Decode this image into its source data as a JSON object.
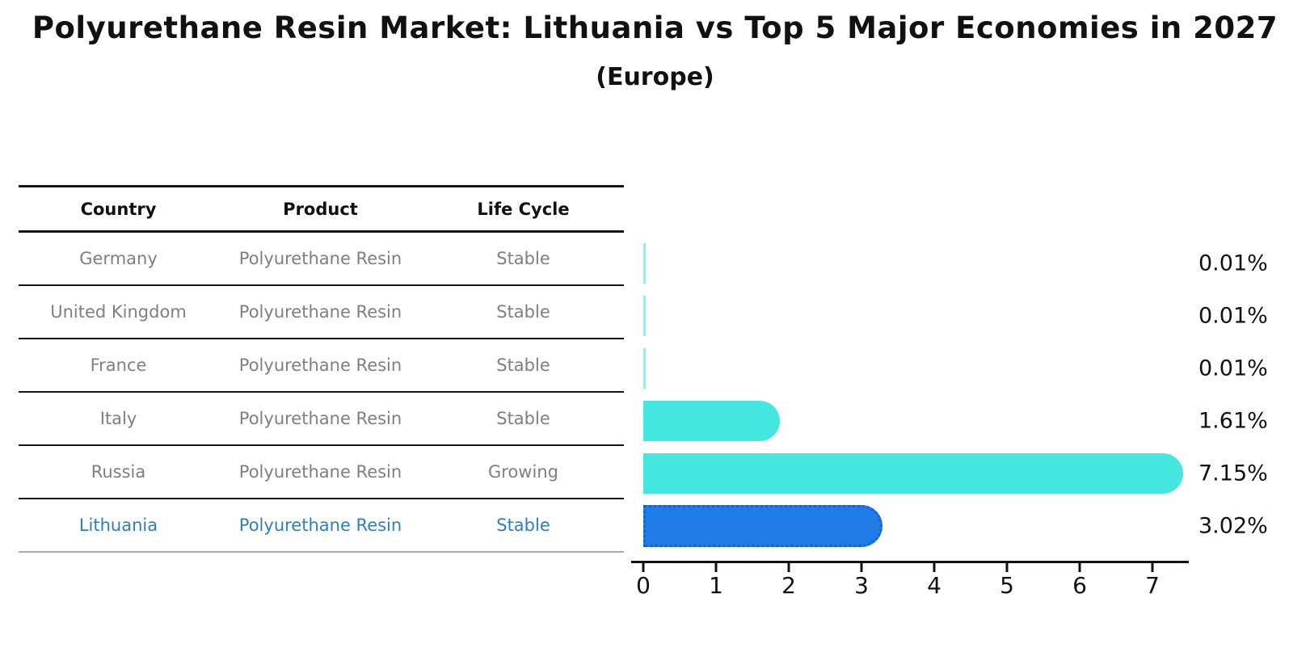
{
  "title": "Polyurethane Resin Market: Lithuania vs Top 5 Major Economies in 2027",
  "subtitle": "(Europe)",
  "table": {
    "headers": [
      "Country",
      "Product",
      "Life Cycle"
    ],
    "rows": [
      {
        "country": "Germany",
        "product": "Polyurethane Resin",
        "life_cycle": "Stable",
        "highlight": false
      },
      {
        "country": "United Kingdom",
        "product": "Polyurethane Resin",
        "life_cycle": "Stable",
        "highlight": false
      },
      {
        "country": "France",
        "product": "Polyurethane Resin",
        "life_cycle": "Stable",
        "highlight": false
      },
      {
        "country": "Italy",
        "product": "Polyurethane Resin",
        "life_cycle": "Stable",
        "highlight": false
      },
      {
        "country": "Russia",
        "product": "Polyurethane Resin",
        "life_cycle": "Growing",
        "highlight": false
      },
      {
        "country": "Lithuania",
        "product": "Polyurethane Resin",
        "life_cycle": "Stable",
        "highlight": true
      }
    ]
  },
  "chart_data": {
    "type": "bar",
    "orientation": "horizontal",
    "categories": [
      "Germany",
      "United Kingdom",
      "France",
      "Italy",
      "Russia",
      "Lithuania"
    ],
    "values": [
      0.01,
      0.01,
      0.01,
      1.61,
      7.15,
      3.02
    ],
    "value_labels": [
      "0.01%",
      "0.01%",
      "0.01%",
      "1.61%",
      "7.15%",
      "3.02%"
    ],
    "xticks": [
      "0",
      "1",
      "2",
      "3",
      "4",
      "5",
      "6",
      "7"
    ],
    "xlim": [
      0,
      7.6
    ],
    "grid": false,
    "legend": false,
    "highlight_index": 5
  },
  "colors": {
    "bar_default": "#45E5E0",
    "bar_faint": "#9FEAE5",
    "bar_highlight": "#1E7BE8",
    "bar_highlight_border": "#1563C9",
    "highlight_text": "#2E7EBC",
    "row_text": "#7F7F7F",
    "header_text": "#111111",
    "axis": "#111111",
    "bottom_line": "#AAAAAA"
  }
}
